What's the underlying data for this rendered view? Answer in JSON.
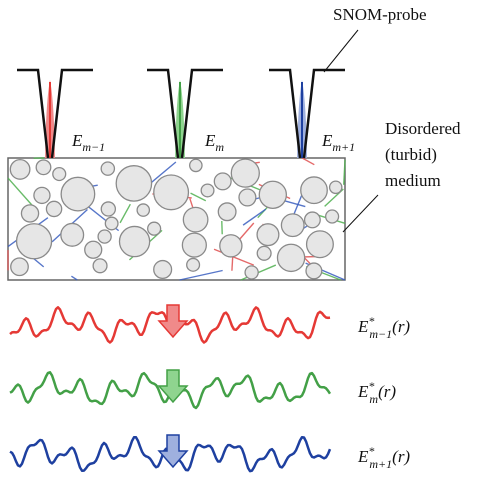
{
  "probe_label": "SNOM-probe",
  "medium_label": [
    "Disordered",
    "(turbid)",
    "medium"
  ],
  "field_labels": [
    {
      "base": "E",
      "sub": "m−1"
    },
    {
      "base": "E",
      "sub": "m"
    },
    {
      "base": "E",
      "sub": "m+1"
    }
  ],
  "conjugate_labels": [
    {
      "base": "E",
      "sup": "*",
      "sub": "m−1",
      "arg": "(r)"
    },
    {
      "base": "E",
      "sup": "*",
      "sub": "m",
      "arg": "(r)"
    },
    {
      "base": "E",
      "sup": "*",
      "sub": "m+1",
      "arg": "(r)"
    }
  ]
}
